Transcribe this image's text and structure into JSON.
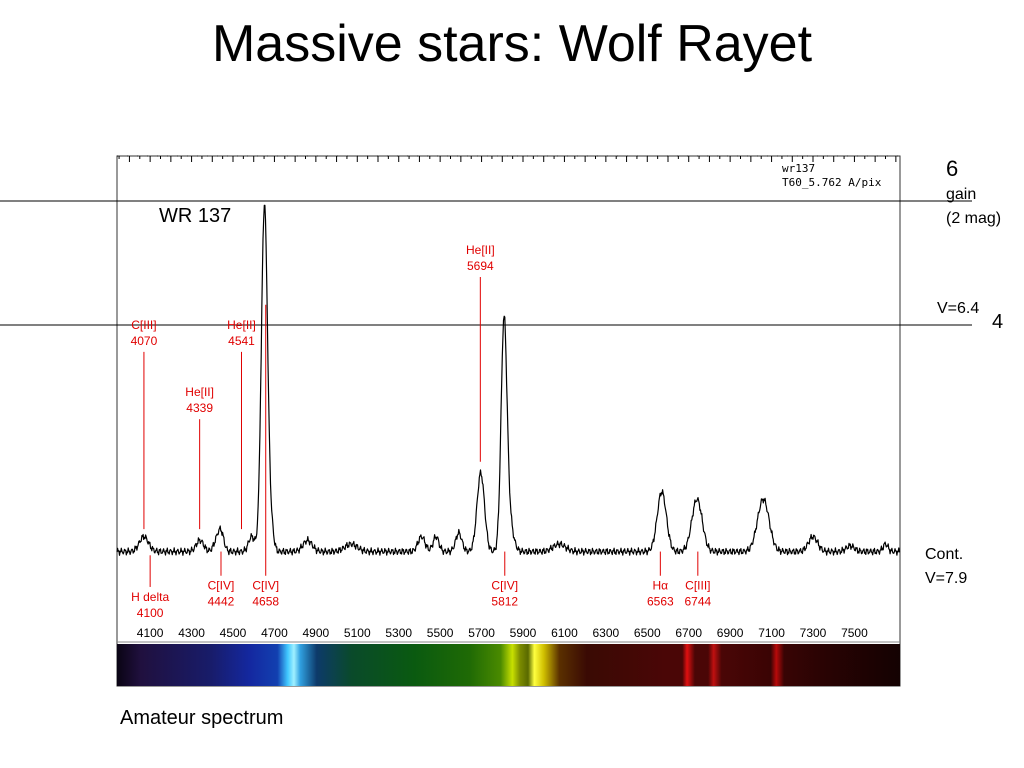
{
  "slide": {
    "title": "Massive stars: Wolf Rayet",
    "caption": "Amateur spectrum",
    "star_label": "WR 137",
    "right_labels": {
      "top_mag": "6",
      "gain": "gain",
      "gain_mag": "(2 mag)",
      "vmag": "V=6.4",
      "mid_mag": "4",
      "cont": "Cont.",
      "cont_v": "V=7.9"
    }
  },
  "chart_data": {
    "type": "line",
    "info_line1": "wr137",
    "info_line2": "T60_5.762 A/pix",
    "xlim": [
      3940,
      7720
    ],
    "ylim": [
      0,
      1
    ],
    "x_ticks": [
      4100,
      4300,
      4500,
      4700,
      4900,
      5100,
      5300,
      5500,
      5700,
      5900,
      6100,
      6300,
      6500,
      6700,
      6900,
      7100,
      7300,
      7500
    ],
    "continuum": 0.06,
    "peaks": [
      {
        "x": 4070,
        "amp": 0.04,
        "w": 22
      },
      {
        "x": 4340,
        "amp": 0.03,
        "w": 18
      },
      {
        "x": 4420,
        "amp": 0.025,
        "w": 15
      },
      {
        "x": 4442,
        "amp": 0.05,
        "w": 14
      },
      {
        "x": 4590,
        "amp": 0.04,
        "w": 15
      },
      {
        "x": 4652,
        "amp": 0.93,
        "w": 15
      },
      {
        "x": 4686,
        "amp": 0.05,
        "w": 12
      },
      {
        "x": 4860,
        "amp": 0.03,
        "w": 22
      },
      {
        "x": 5070,
        "amp": 0.02,
        "w": 30
      },
      {
        "x": 5410,
        "amp": 0.04,
        "w": 17
      },
      {
        "x": 5480,
        "amp": 0.04,
        "w": 14
      },
      {
        "x": 5590,
        "amp": 0.05,
        "w": 15
      },
      {
        "x": 5696,
        "amp": 0.21,
        "w": 18
      },
      {
        "x": 5808,
        "amp": 0.58,
        "w": 14
      },
      {
        "x": 5830,
        "amp": 0.09,
        "w": 20
      },
      {
        "x": 6075,
        "amp": 0.02,
        "w": 30
      },
      {
        "x": 6570,
        "amp": 0.16,
        "w": 22
      },
      {
        "x": 6740,
        "amp": 0.14,
        "w": 25
      },
      {
        "x": 7060,
        "amp": 0.14,
        "w": 28
      },
      {
        "x": 7300,
        "amp": 0.04,
        "w": 22
      },
      {
        "x": 7480,
        "amp": 0.015,
        "w": 20
      },
      {
        "x": 7650,
        "amp": 0.02,
        "w": 12
      }
    ],
    "annotations_above": [
      {
        "name": "CIII",
        "label": "C[III]",
        "wavelength": "4070",
        "x": 4070,
        "level": 0.61,
        "tip": 0.12
      },
      {
        "name": "HeII-4339",
        "label": "He[II]",
        "wavelength": "4339",
        "x": 4339,
        "level": 0.43,
        "tip": 0.12
      },
      {
        "name": "HeII-4541",
        "label": "He[II]",
        "wavelength": "4541",
        "x": 4541,
        "level": 0.61,
        "tip": 0.12
      },
      {
        "name": "HeII-5694",
        "label": "He[II]",
        "wavelength": "5694",
        "x": 5694,
        "level": 0.81,
        "tip": 0.3
      }
    ],
    "annotations_below": [
      {
        "name": "H-delta",
        "label": "H delta",
        "wavelength": "4100",
        "x": 4100,
        "level": -0.04,
        "tip": 0.05
      },
      {
        "name": "CIV-4442",
        "label": "C[IV]",
        "wavelength": "4442",
        "x": 4442,
        "level": -0.01,
        "tip": 0.06
      },
      {
        "name": "CIV-4658",
        "label": "C[IV]",
        "wavelength": "4658",
        "x": 4658,
        "level": -0.01,
        "tip": 0.72
      },
      {
        "name": "CIV-5812",
        "label": "C[IV]",
        "wavelength": "5812",
        "x": 5812,
        "level": -0.01,
        "tip": 0.06
      },
      {
        "name": "H-alpha",
        "label": "Hα",
        "wavelength": "6563",
        "x": 6563,
        "level": -0.01,
        "tip": 0.06
      },
      {
        "name": "CIII-6744",
        "label": "C[III]",
        "wavelength": "6744",
        "x": 6744,
        "level": -0.01,
        "tip": 0.06
      }
    ],
    "annotation_color": "#e00000"
  }
}
